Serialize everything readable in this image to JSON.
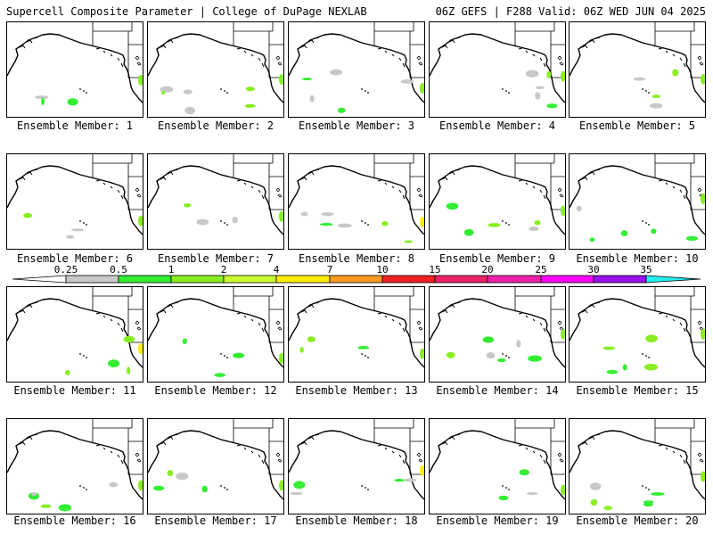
{
  "header": {
    "left": "Supercell Composite Parameter | College of DuPage NEXLAB",
    "right": "06Z GEFS | F288 Valid: 06Z WED JUN 04 2025"
  },
  "colorbar": {
    "ticks": [
      "0.25",
      "0.5",
      "1",
      "2",
      "4",
      "7",
      "10",
      "15",
      "20",
      "25",
      "30",
      "35"
    ],
    "colors": [
      "#c8c8c8",
      "#33ee33",
      "#88ee22",
      "#ccff33",
      "#ffee00",
      "#ff9922",
      "#ee2222",
      "#ee2266",
      "#ee22aa",
      "#ff00ff",
      "#9911ee",
      "#aa55dd",
      "#22eeee"
    ]
  },
  "members": [
    {
      "caption": "Ensemble Member: 1"
    },
    {
      "caption": "Ensemble Member: 2"
    },
    {
      "caption": "Ensemble Member: 3"
    },
    {
      "caption": "Ensemble Member: 4"
    },
    {
      "caption": "Ensemble Member: 5"
    },
    {
      "caption": "Ensemble Member: 6"
    },
    {
      "caption": "Ensemble Member: 7"
    },
    {
      "caption": "Ensemble Member: 8"
    },
    {
      "caption": "Ensemble Member: 9"
    },
    {
      "caption": "Ensemble Member: 10"
    },
    {
      "caption": "Ensemble Member: 11"
    },
    {
      "caption": "Ensemble Member: 12"
    },
    {
      "caption": "Ensemble Member: 13"
    },
    {
      "caption": "Ensemble Member: 14"
    },
    {
      "caption": "Ensemble Member: 15"
    },
    {
      "caption": "Ensemble Member: 16"
    },
    {
      "caption": "Ensemble Member: 17"
    },
    {
      "caption": "Ensemble Member: 18"
    },
    {
      "caption": "Ensemble Member: 19"
    },
    {
      "caption": "Ensemble Member: 20"
    }
  ]
}
